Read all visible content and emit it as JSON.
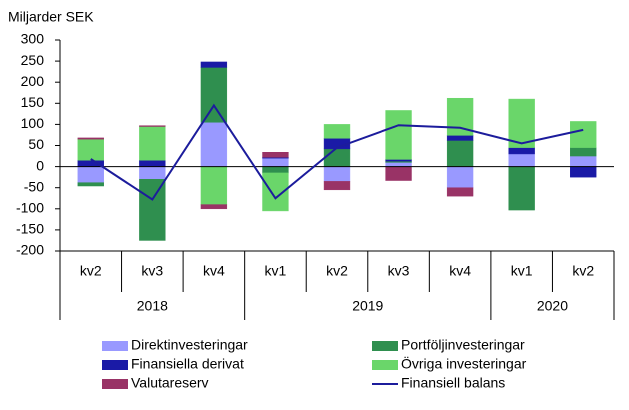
{
  "chart_data": {
    "type": "stacked-bar-line",
    "y_label": "Miljarder SEK",
    "categories": [
      "kv2",
      "kv3",
      "kv4",
      "kv1",
      "kv2",
      "kv3",
      "kv4",
      "kv1",
      "kv2"
    ],
    "years": [
      "2018",
      null,
      null,
      "2019",
      null,
      null,
      null,
      "2020",
      null
    ],
    "series": [
      {
        "name": "Direktinvesteringar",
        "color": "#9999ff",
        "values": [
          -38,
          -30,
          105,
          20,
          -35,
          10,
          -50,
          30,
          25
        ]
      },
      {
        "name": "Portföljinvesteringar",
        "color": "#2f8f4f",
        "values": [
          -8,
          -145,
          130,
          -15,
          42,
          3,
          62,
          -103,
          20
        ]
      },
      {
        "name": "Finansiella derivat",
        "color": "#1a1aa6",
        "values": [
          15,
          15,
          13,
          2,
          25,
          4,
          12,
          15,
          -25
        ]
      },
      {
        "name": "Övriga investeringar",
        "color": "#6ad66a",
        "values": [
          50,
          80,
          -90,
          -90,
          33,
          116,
          88,
          115,
          62
        ]
      },
      {
        "name": "Valutareserv",
        "color": "#993366",
        "values": [
          3,
          2,
          -10,
          12,
          -20,
          -33,
          -20,
          0,
          0
        ]
      },
      {
        "name": "Finansiell balans",
        "type": "line",
        "color": "#1c1c9c",
        "values": [
          18,
          -78,
          145,
          -75,
          45,
          98,
          92,
          55,
          87
        ]
      }
    ],
    "ylim": [
      -200,
      300
    ],
    "yticks": [
      -200,
      -150,
      -100,
      -50,
      0,
      50,
      100,
      150,
      200,
      250,
      300
    ],
    "grid": false
  }
}
